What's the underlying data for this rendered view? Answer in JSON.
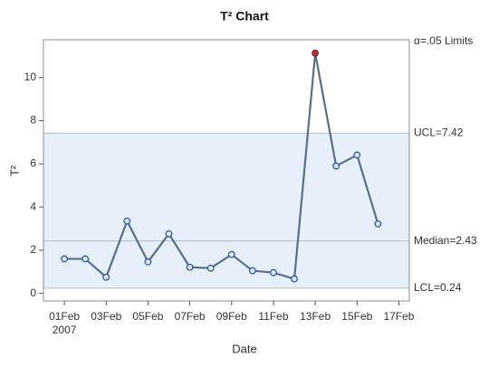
{
  "chart_data": {
    "type": "line",
    "title": "T² Chart",
    "x_label": "Date",
    "y_label": "T²",
    "limits_title": "α=.05 Limits",
    "x": [
      "2007-02-01",
      "2007-02-02",
      "2007-02-03",
      "2007-02-04",
      "2007-02-05",
      "2007-02-06",
      "2007-02-07",
      "2007-02-08",
      "2007-02-09",
      "2007-02-10",
      "2007-02-11",
      "2007-02-12",
      "2007-02-13",
      "2007-02-14",
      "2007-02-15",
      "2007-02-16"
    ],
    "series": [
      {
        "name": "T²",
        "color": "#5b6e85",
        "marker_color": "#2a4ea0",
        "out_color": "#c0303a",
        "values": [
          1.6,
          1.6,
          0.75,
          3.35,
          1.46,
          2.76,
          1.21,
          1.17,
          1.8,
          1.05,
          0.96,
          0.67,
          11.13,
          5.9,
          6.41,
          3.22
        ]
      }
    ],
    "limits": [
      {
        "label": "UCL=7.42",
        "value": 7.42
      },
      {
        "label": "Median=2.43",
        "value": 2.43
      },
      {
        "label": "LCL=0.24",
        "value": 0.24
      }
    ],
    "band_color": "#e6f0fb",
    "xlim": [
      "2007-01-31T00:00Z",
      "2007-02-17T12:00Z"
    ],
    "xticks": [
      {
        "value": "2007-02-01",
        "label": "01Feb"
      },
      {
        "value": "2007-02-03",
        "label": "03Feb"
      },
      {
        "value": "2007-02-05",
        "label": "05Feb"
      },
      {
        "value": "2007-02-07",
        "label": "07Feb"
      },
      {
        "value": "2007-02-09",
        "label": "09Feb"
      },
      {
        "value": "2007-02-11",
        "label": "11Feb"
      },
      {
        "value": "2007-02-13",
        "label": "13Feb"
      },
      {
        "value": "2007-02-15",
        "label": "15Feb"
      },
      {
        "value": "2007-02-17",
        "label": "17Feb"
      }
    ],
    "x_year_label": "2007",
    "ylim": [
      -0.35,
      11.75
    ],
    "yticks": [
      0,
      2,
      4,
      6,
      8,
      10
    ]
  }
}
